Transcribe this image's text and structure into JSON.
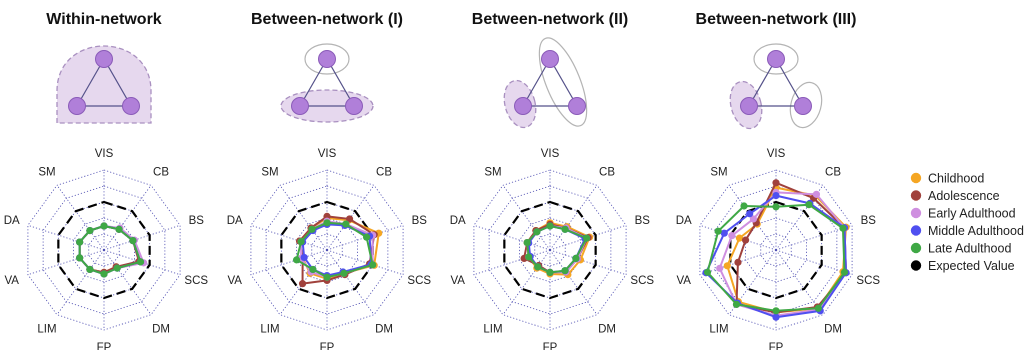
{
  "colors": {
    "node": "#b07fd9",
    "node_stroke": "#8a5bb8",
    "edge": "#55528a",
    "shade_fill": "#e6d8ee",
    "shade_stroke": "#a990c0",
    "ellipse_stroke": "#b4b4b4",
    "grid": "#4a4ab0",
    "expected": "#000000"
  },
  "legend": {
    "items": [
      {
        "label": "Childhood",
        "color": "#f5a623"
      },
      {
        "label": "Adolescence",
        "color": "#a0413c"
      },
      {
        "label": "Early Adulthood",
        "color": "#cf8fe0"
      },
      {
        "label": "Middle Adulthood",
        "color": "#4f4ff0"
      },
      {
        "label": "Late Adulthood",
        "color": "#3fa845"
      },
      {
        "label": "Expected Value",
        "color": "#000000"
      }
    ]
  },
  "chart_data": [
    {
      "type": "radar",
      "title": "Within-network",
      "diagram": "within",
      "axes": [
        "VIS",
        "CB",
        "BS",
        "SCS",
        "DM",
        "FP",
        "LIM",
        "VA",
        "DA",
        "SM"
      ],
      "rlim": [
        0,
        5
      ],
      "rings": 5,
      "expected": [
        3,
        3,
        3,
        3,
        3,
        3,
        3,
        3,
        3,
        3
      ],
      "series": [
        {
          "name": "Childhood",
          "values": [
            1.5,
            1.6,
            1.9,
            2.4,
            1.3,
            1.4,
            1.5,
            1.6,
            1.6,
            1.5
          ]
        },
        {
          "name": "Adolescence",
          "values": [
            1.5,
            1.6,
            1.9,
            2.3,
            1.3,
            1.4,
            1.5,
            1.6,
            1.6,
            1.5
          ]
        },
        {
          "name": "Early Adulthood",
          "values": [
            1.5,
            1.7,
            2.0,
            2.6,
            1.4,
            1.5,
            1.5,
            1.6,
            1.6,
            1.5
          ]
        },
        {
          "name": "Middle Adulthood",
          "values": [
            1.5,
            1.6,
            1.9,
            2.4,
            1.4,
            1.5,
            1.5,
            1.6,
            1.6,
            1.5
          ]
        },
        {
          "name": "Late Adulthood",
          "values": [
            1.5,
            1.6,
            1.9,
            2.4,
            1.4,
            1.5,
            1.5,
            1.6,
            1.6,
            1.5
          ]
        }
      ]
    },
    {
      "type": "radar",
      "title": "Between-network (I)",
      "diagram": "between1",
      "axes": [
        "VIS",
        "CB",
        "BS",
        "SCS",
        "DM",
        "FP",
        "LIM",
        "VA",
        "DA",
        "SM"
      ],
      "rlim": [
        0,
        5
      ],
      "rings": 5,
      "expected": [
        3,
        3,
        3,
        3,
        3,
        3,
        3,
        3,
        3,
        3
      ],
      "series": [
        {
          "name": "Childhood",
          "values": [
            2.0,
            2.3,
            3.4,
            3.1,
            1.8,
            1.8,
            1.8,
            1.6,
            1.8,
            1.7
          ]
        },
        {
          "name": "Adolescence",
          "values": [
            2.1,
            2.4,
            3.1,
            2.8,
            1.9,
            1.9,
            2.6,
            1.6,
            1.8,
            1.7
          ]
        },
        {
          "name": "Early Adulthood",
          "values": [
            1.8,
            2.0,
            3.0,
            3.0,
            1.8,
            1.7,
            1.7,
            1.7,
            1.7,
            1.6
          ]
        },
        {
          "name": "Middle Adulthood",
          "values": [
            1.6,
            1.9,
            2.8,
            2.9,
            1.7,
            1.6,
            1.5,
            1.5,
            1.6,
            1.5
          ]
        },
        {
          "name": "Late Adulthood",
          "values": [
            1.7,
            2.0,
            2.6,
            3.0,
            1.8,
            1.7,
            1.5,
            2.0,
            1.7,
            1.6
          ]
        }
      ]
    },
    {
      "type": "radar",
      "title": "Between-network (II)",
      "diagram": "between2",
      "axes": [
        "VIS",
        "CB",
        "BS",
        "SCS",
        "DM",
        "FP",
        "LIM",
        "VA",
        "DA",
        "SM"
      ],
      "rlim": [
        0,
        5
      ],
      "rings": 5,
      "expected": [
        3,
        3,
        3,
        3,
        3,
        3,
        3,
        3,
        3,
        3
      ],
      "series": [
        {
          "name": "Childhood",
          "values": [
            1.7,
            1.8,
            2.6,
            2.0,
            1.9,
            1.5,
            1.4,
            1.4,
            1.5,
            1.5
          ]
        },
        {
          "name": "Adolescence",
          "values": [
            1.6,
            1.7,
            2.5,
            1.8,
            1.7,
            1.4,
            1.2,
            1.7,
            1.5,
            1.5
          ]
        },
        {
          "name": "Early Adulthood",
          "values": [
            1.5,
            1.7,
            2.4,
            1.8,
            1.7,
            1.4,
            1.3,
            1.4,
            1.5,
            1.4
          ]
        },
        {
          "name": "Middle Adulthood",
          "values": [
            1.5,
            1.6,
            2.3,
            1.7,
            1.6,
            1.4,
            1.3,
            1.3,
            1.4,
            1.4
          ]
        },
        {
          "name": "Late Adulthood",
          "values": [
            1.5,
            1.6,
            2.4,
            1.7,
            1.6,
            1.4,
            1.3,
            1.4,
            1.5,
            1.4
          ]
        }
      ]
    },
    {
      "type": "radar",
      "title": "Between-network (III)",
      "diagram": "between3",
      "axes": [
        "VIS",
        "CB",
        "BS",
        "SCS",
        "DM",
        "FP",
        "LIM",
        "VA",
        "DA",
        "SM"
      ],
      "rlim": [
        0,
        5
      ],
      "rings": 5,
      "expected": [
        3,
        3,
        3,
        3,
        3,
        3,
        3,
        3,
        3,
        3
      ],
      "series": [
        {
          "name": "Childhood",
          "values": [
            3.9,
            4.2,
            4.6,
            4.4,
            4.5,
            3.9,
            4.0,
            3.2,
            2.4,
            2.0
          ]
        },
        {
          "name": "Adolescence",
          "values": [
            4.2,
            4.0,
            4.5,
            4.6,
            4.4,
            3.9,
            4.2,
            2.5,
            2.0,
            2.1
          ]
        },
        {
          "name": "Early Adulthood",
          "values": [
            3.6,
            4.3,
            4.5,
            4.6,
            4.6,
            4.1,
            4.2,
            3.7,
            2.9,
            2.4
          ]
        },
        {
          "name": "Middle Adulthood",
          "values": [
            3.4,
            3.6,
            4.5,
            4.6,
            4.7,
            4.2,
            4.1,
            4.6,
            3.4,
            2.8
          ]
        },
        {
          "name": "Late Adulthood",
          "values": [
            2.7,
            3.5,
            4.4,
            4.5,
            4.5,
            3.8,
            4.2,
            4.5,
            3.8,
            3.4
          ]
        }
      ]
    }
  ]
}
